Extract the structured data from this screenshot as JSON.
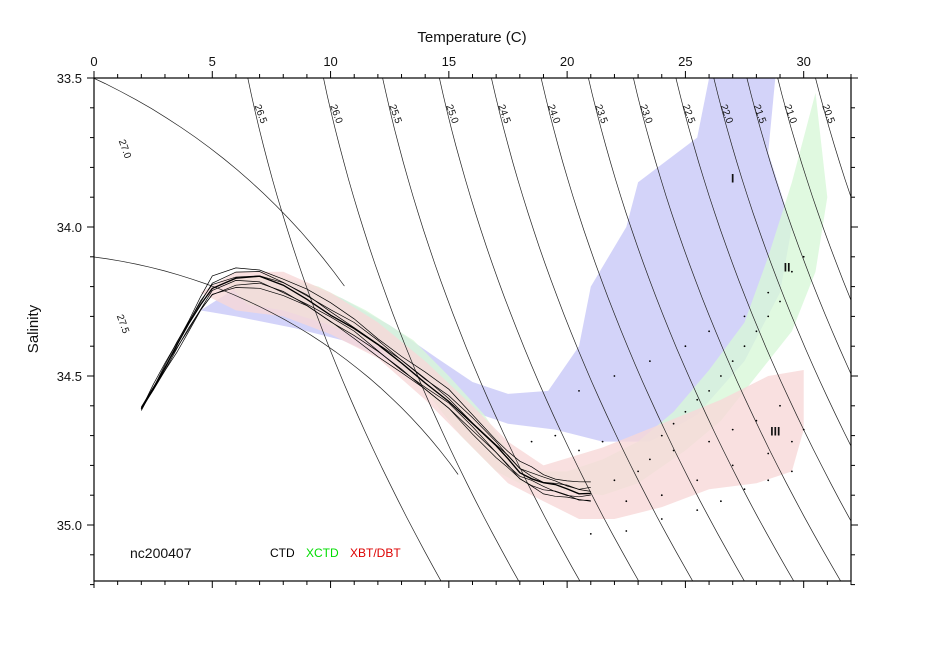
{
  "chart_data": {
    "type": "scatter",
    "xlabel": "Temperature (C)",
    "ylabel": "Salinity",
    "xlim": [
      0,
      32
    ],
    "ylim": [
      35.2,
      33.5
    ],
    "x_ticks": [
      "0",
      "5",
      "10",
      "15",
      "20",
      "25",
      "30"
    ],
    "y_ticks": [
      "33.5",
      "34.0",
      "34.5",
      "35.0"
    ],
    "y_tick_values": [
      33.5,
      34.0,
      34.5,
      35.0
    ],
    "grid": false,
    "annotation": "nc200407",
    "legend": [
      {
        "label": "CTD",
        "color": "#000000"
      },
      {
        "label": "XCTD",
        "color": "#00dd00"
      },
      {
        "label": "XBT/DBT",
        "color": "#dd0000"
      }
    ],
    "isopycnals": [
      {
        "label": "27.5",
        "ref_T": 5.2,
        "ref_S": 34.12
      },
      {
        "label": "27.0",
        "ref_T": 7.6,
        "ref_S": 33.3
      },
      {
        "label": "26.5",
        "ref_T": 6.5,
        "ref_S": 33.4
      },
      {
        "label": "26.0",
        "ref_T": 9.7,
        "ref_S": 33.4
      },
      {
        "label": "25.5",
        "ref_T": 12.2,
        "ref_S": 33.4
      },
      {
        "label": "25.0",
        "ref_T": 14.6,
        "ref_S": 33.4
      },
      {
        "label": "24.5",
        "ref_T": 16.8,
        "ref_S": 33.4
      },
      {
        "label": "24.0",
        "ref_T": 18.9,
        "ref_S": 33.4
      },
      {
        "label": "23.5",
        "ref_T": 20.9,
        "ref_S": 33.4
      },
      {
        "label": "23.0",
        "ref_T": 22.8,
        "ref_S": 33.4
      },
      {
        "label": "22.5",
        "ref_T": 24.6,
        "ref_S": 33.4
      },
      {
        "label": "22.0",
        "ref_T": 26.2,
        "ref_S": 33.4
      },
      {
        "label": "21.5",
        "ref_T": 27.6,
        "ref_S": 33.4
      },
      {
        "label": "21.0",
        "ref_T": 28.9,
        "ref_S": 33.4
      },
      {
        "label": "20.5",
        "ref_T": 30.5,
        "ref_S": 33.4
      }
    ],
    "regions": [
      {
        "label": "I",
        "color": "#c8c8f8",
        "label_T": 27.0,
        "label_S": 33.85,
        "polygon": [
          [
            4.5,
            34.28
          ],
          [
            6.0,
            34.3
          ],
          [
            8.5,
            34.34
          ],
          [
            10.5,
            34.38
          ],
          [
            12.5,
            34.45
          ],
          [
            14.5,
            34.55
          ],
          [
            16.0,
            34.62
          ],
          [
            17.5,
            34.66
          ],
          [
            19.5,
            34.68
          ],
          [
            21.5,
            34.72
          ],
          [
            23.5,
            34.72
          ],
          [
            25.5,
            34.63
          ],
          [
            27.5,
            34.45
          ],
          [
            29.0,
            34.22
          ],
          [
            29.5,
            34.0
          ],
          [
            28.5,
            33.75
          ],
          [
            28.8,
            33.5
          ],
          [
            26.0,
            33.5
          ],
          [
            25.5,
            33.7
          ],
          [
            23.0,
            33.85
          ],
          [
            22.5,
            34.0
          ],
          [
            21.0,
            34.2
          ],
          [
            20.5,
            34.4
          ],
          [
            19.2,
            34.55
          ],
          [
            17.5,
            34.56
          ],
          [
            16.0,
            34.52
          ],
          [
            14.5,
            34.44
          ],
          [
            12.5,
            34.33
          ],
          [
            10.5,
            34.24
          ],
          [
            8.5,
            34.18
          ],
          [
            6.5,
            34.18
          ]
        ]
      },
      {
        "label": "II",
        "color": "#d8f8d8",
        "label_T": 29.3,
        "label_S": 34.15,
        "polygon": [
          [
            5.5,
            34.18
          ],
          [
            7.5,
            34.16
          ],
          [
            9.5,
            34.2
          ],
          [
            11.5,
            34.28
          ],
          [
            13.5,
            34.38
          ],
          [
            15.0,
            34.5
          ],
          [
            16.5,
            34.63
          ],
          [
            17.5,
            34.75
          ],
          [
            18.5,
            34.82
          ],
          [
            20.0,
            34.82
          ],
          [
            21.5,
            34.78
          ],
          [
            23.0,
            34.72
          ],
          [
            24.5,
            34.62
          ],
          [
            26.0,
            34.48
          ],
          [
            27.5,
            34.32
          ],
          [
            28.5,
            34.1
          ],
          [
            29.5,
            33.85
          ],
          [
            30.5,
            33.55
          ],
          [
            31.0,
            33.9
          ],
          [
            30.5,
            34.15
          ],
          [
            29.5,
            34.35
          ],
          [
            28.0,
            34.5
          ],
          [
            26.5,
            34.65
          ],
          [
            25.0,
            34.75
          ],
          [
            23.0,
            34.86
          ],
          [
            21.5,
            34.9
          ],
          [
            19.5,
            34.88
          ],
          [
            18.0,
            34.86
          ],
          [
            17.0,
            34.82
          ],
          [
            15.5,
            34.7
          ],
          [
            14.0,
            34.55
          ],
          [
            12.0,
            34.4
          ],
          [
            10.0,
            34.33
          ],
          [
            8.0,
            34.28
          ],
          [
            6.5,
            34.26
          ]
        ]
      },
      {
        "label": "III",
        "color": "#f8d8d8",
        "label_T": 28.8,
        "label_S": 34.7,
        "polygon": [
          [
            4.5,
            34.22
          ],
          [
            6.0,
            34.15
          ],
          [
            8.0,
            34.15
          ],
          [
            10.0,
            34.22
          ],
          [
            12.0,
            34.32
          ],
          [
            14.0,
            34.45
          ],
          [
            16.0,
            34.6
          ],
          [
            17.5,
            34.72
          ],
          [
            19.0,
            34.8
          ],
          [
            21.5,
            34.74
          ],
          [
            24.0,
            34.66
          ],
          [
            26.5,
            34.58
          ],
          [
            28.5,
            34.5
          ],
          [
            30.0,
            34.48
          ],
          [
            30.0,
            34.68
          ],
          [
            29.5,
            34.82
          ],
          [
            28.0,
            34.86
          ],
          [
            26.0,
            34.88
          ],
          [
            24.0,
            34.94
          ],
          [
            22.0,
            34.98
          ],
          [
            20.5,
            34.98
          ],
          [
            19.0,
            34.92
          ],
          [
            17.5,
            34.86
          ],
          [
            16.0,
            34.74
          ],
          [
            14.0,
            34.58
          ],
          [
            12.0,
            34.44
          ],
          [
            10.0,
            34.36
          ],
          [
            8.0,
            34.3
          ],
          [
            6.0,
            34.28
          ]
        ]
      }
    ],
    "ctd_profile_mean": {
      "x": [
        2.0,
        2.5,
        3.0,
        3.5,
        4.0,
        4.5,
        5.0,
        6.0,
        7.0,
        8.0,
        9.0,
        10.0,
        11.0,
        12.0,
        13.0,
        14.0,
        15.0,
        16.0,
        17.0,
        17.5,
        18.0,
        18.5,
        19.0,
        19.5,
        20.0,
        20.5,
        21.0
      ],
      "y": [
        34.61,
        34.54,
        34.47,
        34.4,
        34.33,
        34.26,
        34.2,
        34.17,
        34.17,
        34.2,
        34.24,
        34.29,
        34.34,
        34.4,
        34.46,
        34.52,
        34.58,
        34.66,
        34.74,
        34.78,
        34.82,
        34.84,
        34.86,
        34.87,
        34.88,
        34.89,
        34.89
      ]
    },
    "scatter_points": {
      "x": [
        18.5,
        19.5,
        20.5,
        21.5,
        22.0,
        23.0,
        23.5,
        24.0,
        24.5,
        25.0,
        25.5,
        26.0,
        26.5,
        27.0,
        27.5,
        28.0,
        28.5,
        29.0,
        22.5,
        24.0,
        25.5,
        27.0,
        28.5,
        29.5,
        30.0,
        21.0,
        22.5,
        24.0,
        25.5,
        26.5,
        27.5,
        28.5,
        29.5,
        20.5,
        22.0,
        23.5,
        25.0,
        26.0,
        27.5,
        28.5,
        29.5,
        30.0,
        24.5,
        26.0,
        27.0,
        28.0,
        29.0
      ],
      "y": [
        34.72,
        34.7,
        34.75,
        34.72,
        34.85,
        34.82,
        34.78,
        34.7,
        34.66,
        34.62,
        34.58,
        34.55,
        34.5,
        34.45,
        34.4,
        34.35,
        34.3,
        34.25,
        34.92,
        34.9,
        34.85,
        34.8,
        34.76,
        34.72,
        34.68,
        35.03,
        35.02,
        34.98,
        34.95,
        34.92,
        34.88,
        34.85,
        34.82,
        34.55,
        34.5,
        34.45,
        34.4,
        34.35,
        34.3,
        34.22,
        34.15,
        34.1,
        34.75,
        34.72,
        34.68,
        34.65,
        34.6
      ]
    }
  }
}
